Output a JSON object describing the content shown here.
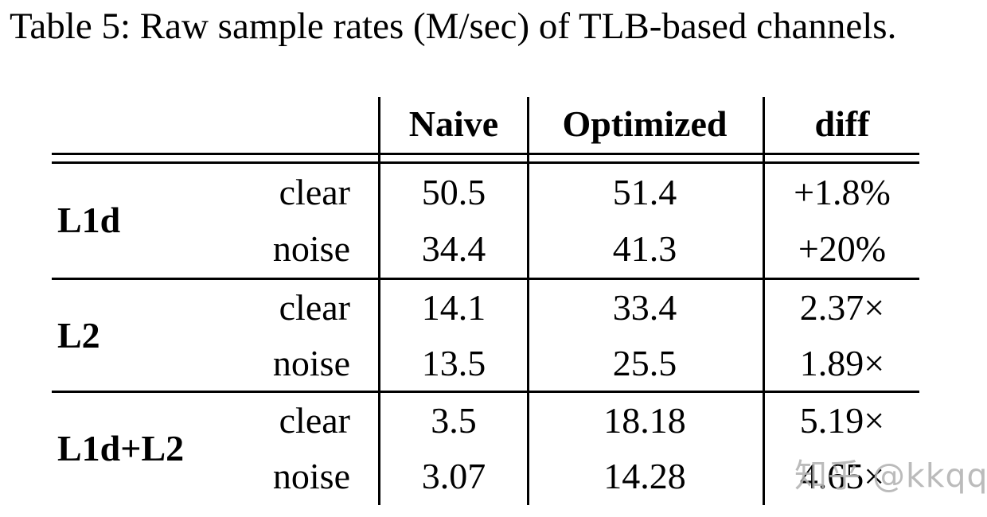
{
  "title": "Table 5: Raw sample rates (M/sec) of TLB-based channels.",
  "table": {
    "columns": {
      "naive": "Naive",
      "optimized": "Optimized",
      "diff": "diff"
    },
    "groups": [
      {
        "label": "L1d",
        "rows": [
          {
            "condition": "clear",
            "naive": "50.5",
            "optimized": "51.4",
            "diff": "+1.8%"
          },
          {
            "condition": "noise",
            "naive": "34.4",
            "optimized": "41.3",
            "diff": "+20%"
          }
        ]
      },
      {
        "label": "L2",
        "rows": [
          {
            "condition": "clear",
            "naive": "14.1",
            "optimized": "33.4",
            "diff": "2.37×"
          },
          {
            "condition": "noise",
            "naive": "13.5",
            "optimized": "25.5",
            "diff": "1.89×"
          }
        ]
      },
      {
        "label": "L1d+L2",
        "rows": [
          {
            "condition": "clear",
            "naive": "3.5",
            "optimized": "18.18",
            "diff": "5.19×"
          },
          {
            "condition": "noise",
            "naive": "3.07",
            "optimized": "14.28",
            "diff": "4.65×"
          }
        ]
      }
    ]
  },
  "watermark": {
    "text": "知乎 @kkqq",
    "color": "#b2b2b2"
  },
  "colors": {
    "text": "#000000",
    "rule": "#000000",
    "background": "#ffffff"
  },
  "chart_data": {
    "type": "table",
    "title": "Table 5: Raw sample rates (M/sec) of TLB-based channels.",
    "columns": [
      "",
      "",
      "Naive",
      "Optimized",
      "diff"
    ],
    "rows": [
      [
        "L1d",
        "clear",
        "50.5",
        "51.4",
        "+1.8%"
      ],
      [
        "L1d",
        "noise",
        "34.4",
        "41.3",
        "+20%"
      ],
      [
        "L2",
        "clear",
        "14.1",
        "33.4",
        "2.37×"
      ],
      [
        "L2",
        "noise",
        "13.5",
        "25.5",
        "1.89×"
      ],
      [
        "L1d+L2",
        "clear",
        "3.5",
        "18.18",
        "5.19×"
      ],
      [
        "L1d+L2",
        "noise",
        "3.07",
        "14.28",
        "4.65×"
      ]
    ]
  }
}
